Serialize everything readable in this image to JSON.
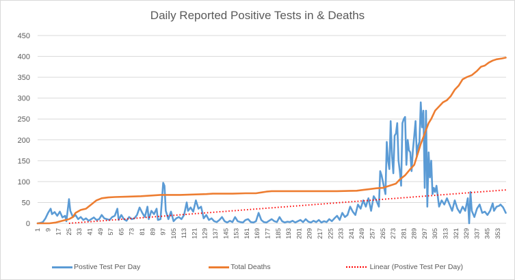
{
  "chart_data": {
    "type": "line",
    "title": "Daily Reported Positive Tests in & Deaths",
    "xlabel": "",
    "ylabel": "",
    "ylim": [
      0,
      450
    ],
    "yticks": [
      0,
      50,
      100,
      150,
      200,
      250,
      300,
      350,
      400,
      450
    ],
    "xticks": [
      1,
      9,
      17,
      25,
      33,
      41,
      49,
      57,
      65,
      73,
      81,
      89,
      97,
      105,
      113,
      121,
      129,
      137,
      145,
      153,
      161,
      169,
      177,
      185,
      193,
      201,
      209,
      217,
      225,
      233,
      241,
      249,
      257,
      265,
      273,
      281,
      289,
      297,
      305,
      313,
      321,
      329,
      337,
      345,
      353
    ],
    "xlim": [
      1,
      359
    ],
    "grid": true,
    "legend_position": "bottom",
    "colors": {
      "positive": "#5b9bd5",
      "deaths": "#ed7d31",
      "trend": "#ff0000",
      "grid": "#d9d9d9",
      "text": "#595959"
    },
    "series": [
      {
        "name": "Postive Test Per Day",
        "style": "solid",
        "points": [
          [
            1,
            0
          ],
          [
            3,
            1
          ],
          [
            5,
            3
          ],
          [
            7,
            12
          ],
          [
            9,
            25
          ],
          [
            11,
            35
          ],
          [
            12,
            22
          ],
          [
            14,
            27
          ],
          [
            16,
            18
          ],
          [
            18,
            28
          ],
          [
            20,
            14
          ],
          [
            22,
            18
          ],
          [
            23,
            5
          ],
          [
            25,
            58
          ],
          [
            26,
            30
          ],
          [
            28,
            15
          ],
          [
            30,
            20
          ],
          [
            32,
            10
          ],
          [
            34,
            15
          ],
          [
            36,
            8
          ],
          [
            38,
            12
          ],
          [
            40,
            6
          ],
          [
            42,
            10
          ],
          [
            44,
            14
          ],
          [
            46,
            8
          ],
          [
            48,
            10
          ],
          [
            50,
            20
          ],
          [
            52,
            12
          ],
          [
            54,
            10
          ],
          [
            56,
            8
          ],
          [
            58,
            15
          ],
          [
            60,
            18
          ],
          [
            62,
            35
          ],
          [
            63,
            8
          ],
          [
            65,
            20
          ],
          [
            67,
            10
          ],
          [
            69,
            6
          ],
          [
            71,
            15
          ],
          [
            73,
            10
          ],
          [
            75,
            12
          ],
          [
            77,
            20
          ],
          [
            79,
            38
          ],
          [
            81,
            25
          ],
          [
            83,
            15
          ],
          [
            85,
            40
          ],
          [
            86,
            10
          ],
          [
            88,
            30
          ],
          [
            90,
            22
          ],
          [
            92,
            35
          ],
          [
            93,
            8
          ],
          [
            95,
            10
          ],
          [
            97,
            97
          ],
          [
            98,
            90
          ],
          [
            99,
            30
          ],
          [
            101,
            10
          ],
          [
            103,
            28
          ],
          [
            105,
            5
          ],
          [
            107,
            12
          ],
          [
            109,
            15
          ],
          [
            111,
            10
          ],
          [
            113,
            20
          ],
          [
            115,
            50
          ],
          [
            116,
            30
          ],
          [
            118,
            38
          ],
          [
            120,
            28
          ],
          [
            122,
            55
          ],
          [
            124,
            35
          ],
          [
            126,
            40
          ],
          [
            128,
            12
          ],
          [
            130,
            20
          ],
          [
            132,
            8
          ],
          [
            134,
            12
          ],
          [
            136,
            5
          ],
          [
            138,
            3
          ],
          [
            140,
            8
          ],
          [
            142,
            15
          ],
          [
            144,
            5
          ],
          [
            146,
            2
          ],
          [
            148,
            6
          ],
          [
            150,
            3
          ],
          [
            152,
            15
          ],
          [
            154,
            5
          ],
          [
            156,
            3
          ],
          [
            158,
            2
          ],
          [
            160,
            8
          ],
          [
            162,
            10
          ],
          [
            164,
            3
          ],
          [
            166,
            2
          ],
          [
            168,
            5
          ],
          [
            170,
            25
          ],
          [
            172,
            8
          ],
          [
            174,
            3
          ],
          [
            176,
            2
          ],
          [
            178,
            6
          ],
          [
            180,
            10
          ],
          [
            182,
            5
          ],
          [
            184,
            3
          ],
          [
            186,
            15
          ],
          [
            188,
            5
          ],
          [
            190,
            2
          ],
          [
            192,
            4
          ],
          [
            194,
            3
          ],
          [
            196,
            6
          ],
          [
            198,
            2
          ],
          [
            200,
            5
          ],
          [
            202,
            8
          ],
          [
            204,
            3
          ],
          [
            206,
            10
          ],
          [
            208,
            4
          ],
          [
            210,
            2
          ],
          [
            212,
            6
          ],
          [
            214,
            3
          ],
          [
            216,
            8
          ],
          [
            218,
            2
          ],
          [
            220,
            5
          ],
          [
            222,
            3
          ],
          [
            224,
            10
          ],
          [
            226,
            5
          ],
          [
            228,
            12
          ],
          [
            230,
            18
          ],
          [
            232,
            8
          ],
          [
            234,
            25
          ],
          [
            236,
            15
          ],
          [
            238,
            20
          ],
          [
            240,
            40
          ],
          [
            242,
            28
          ],
          [
            244,
            20
          ],
          [
            246,
            45
          ],
          [
            248,
            35
          ],
          [
            250,
            55
          ],
          [
            252,
            40
          ],
          [
            254,
            60
          ],
          [
            256,
            30
          ],
          [
            258,
            65
          ],
          [
            260,
            55
          ],
          [
            262,
            40
          ],
          [
            263,
            125
          ],
          [
            264,
            115
          ],
          [
            265,
            100
          ],
          [
            266,
            85
          ],
          [
            267,
            70
          ],
          [
            268,
            195
          ],
          [
            269,
            150
          ],
          [
            270,
            130
          ],
          [
            271,
            245
          ],
          [
            272,
            160
          ],
          [
            273,
            120
          ],
          [
            274,
            210
          ],
          [
            275,
            215
          ],
          [
            276,
            240
          ],
          [
            277,
            150
          ],
          [
            278,
            125
          ],
          [
            279,
            90
          ],
          [
            280,
            240
          ],
          [
            281,
            250
          ],
          [
            282,
            255
          ],
          [
            283,
            140
          ],
          [
            284,
            200
          ],
          [
            285,
            175
          ],
          [
            286,
            170
          ],
          [
            287,
            125
          ],
          [
            288,
            175
          ],
          [
            289,
            210
          ],
          [
            290,
            245
          ],
          [
            291,
            160
          ],
          [
            292,
            185
          ],
          [
            293,
            195
          ],
          [
            294,
            290
          ],
          [
            295,
            230
          ],
          [
            296,
            270
          ],
          [
            297,
            85
          ],
          [
            298,
            270
          ],
          [
            299,
            40
          ],
          [
            300,
            170
          ],
          [
            301,
            110
          ],
          [
            302,
            150
          ],
          [
            303,
            70
          ],
          [
            304,
            85
          ],
          [
            305,
            75
          ],
          [
            306,
            90
          ],
          [
            307,
            65
          ],
          [
            308,
            40
          ],
          [
            310,
            55
          ],
          [
            312,
            45
          ],
          [
            314,
            60
          ],
          [
            316,
            45
          ],
          [
            318,
            30
          ],
          [
            320,
            55
          ],
          [
            322,
            35
          ],
          [
            324,
            25
          ],
          [
            326,
            40
          ],
          [
            328,
            30
          ],
          [
            330,
            60
          ],
          [
            331,
            0
          ],
          [
            332,
            75
          ],
          [
            333,
            30
          ],
          [
            335,
            15
          ],
          [
            337,
            35
          ],
          [
            339,
            45
          ],
          [
            341,
            25
          ],
          [
            343,
            28
          ],
          [
            345,
            20
          ],
          [
            347,
            30
          ],
          [
            349,
            48
          ],
          [
            350,
            30
          ],
          [
            352,
            40
          ],
          [
            354,
            42
          ],
          [
            355,
            45
          ],
          [
            357,
            38
          ],
          [
            359,
            25
          ]
        ]
      },
      {
        "name": "Total Deaths",
        "style": "solid",
        "points": [
          [
            1,
            0
          ],
          [
            10,
            0
          ],
          [
            15,
            2
          ],
          [
            20,
            6
          ],
          [
            25,
            10
          ],
          [
            28,
            15
          ],
          [
            30,
            25
          ],
          [
            34,
            32
          ],
          [
            38,
            35
          ],
          [
            42,
            45
          ],
          [
            46,
            55
          ],
          [
            50,
            60
          ],
          [
            55,
            62
          ],
          [
            60,
            63
          ],
          [
            70,
            64
          ],
          [
            80,
            65
          ],
          [
            90,
            67
          ],
          [
            95,
            68
          ],
          [
            100,
            68
          ],
          [
            110,
            68
          ],
          [
            120,
            69
          ],
          [
            130,
            70
          ],
          [
            135,
            71
          ],
          [
            150,
            71
          ],
          [
            160,
            72
          ],
          [
            168,
            72
          ],
          [
            172,
            74
          ],
          [
            176,
            76
          ],
          [
            180,
            77
          ],
          [
            200,
            77
          ],
          [
            230,
            77
          ],
          [
            245,
            78
          ],
          [
            250,
            80
          ],
          [
            255,
            82
          ],
          [
            260,
            84
          ],
          [
            265,
            85
          ],
          [
            270,
            90
          ],
          [
            275,
            95
          ],
          [
            278,
            105
          ],
          [
            282,
            115
          ],
          [
            286,
            130
          ],
          [
            289,
            140
          ],
          [
            292,
            170
          ],
          [
            294,
            190
          ],
          [
            297,
            215
          ],
          [
            300,
            240
          ],
          [
            302,
            250
          ],
          [
            305,
            270
          ],
          [
            308,
            280
          ],
          [
            311,
            290
          ],
          [
            314,
            295
          ],
          [
            317,
            305
          ],
          [
            320,
            320
          ],
          [
            323,
            330
          ],
          [
            326,
            345
          ],
          [
            329,
            350
          ],
          [
            333,
            355
          ],
          [
            337,
            365
          ],
          [
            340,
            375
          ],
          [
            343,
            378
          ],
          [
            346,
            385
          ],
          [
            349,
            390
          ],
          [
            352,
            393
          ],
          [
            356,
            395
          ],
          [
            359,
            397
          ]
        ]
      },
      {
        "name": "Linear (Postive Test Per Day)",
        "style": "dotted",
        "points": [
          [
            25,
            0
          ],
          [
            359,
            80
          ]
        ]
      }
    ]
  }
}
